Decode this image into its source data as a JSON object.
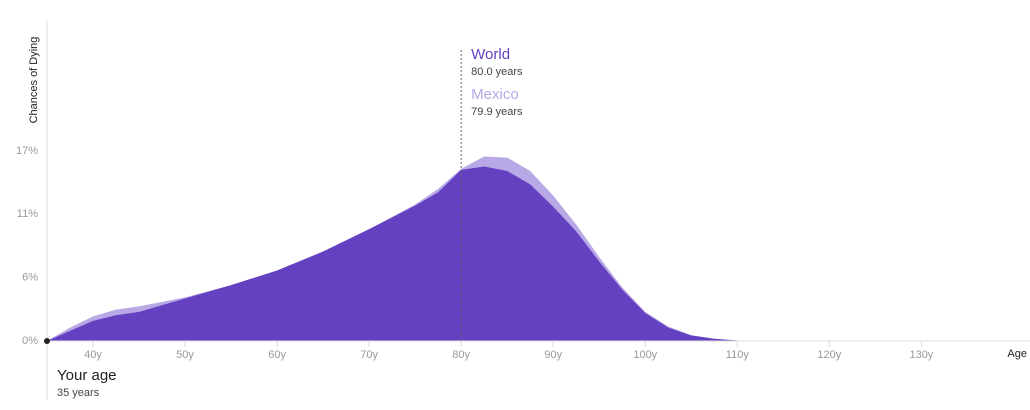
{
  "chart_data": {
    "type": "area",
    "y_label": "Chances of Dying",
    "x_label": "Age",
    "x": [
      35,
      37.5,
      40,
      42.5,
      45,
      50,
      55,
      60,
      65,
      70,
      75,
      77.5,
      80,
      82.5,
      85,
      87.5,
      90,
      92.5,
      95,
      97.5,
      100,
      102.5,
      105,
      107.5,
      110,
      115
    ],
    "series": [
      {
        "name": "Mexico",
        "color": "#b9a8e6",
        "values": [
          0,
          1.2,
          2.2,
          2.8,
          3.1,
          3.9,
          5.0,
          6.3,
          8.0,
          10.0,
          12.2,
          13.6,
          15.4,
          16.5,
          16.4,
          15.2,
          13.0,
          10.4,
          7.5,
          4.8,
          2.6,
          1.3,
          0.5,
          0.2,
          0.05,
          0
        ]
      },
      {
        "name": "World",
        "color": "#6441c0",
        "values": [
          0,
          0.9,
          1.8,
          2.3,
          2.6,
          3.8,
          5.0,
          6.3,
          8.0,
          10.0,
          12.1,
          13.3,
          15.3,
          15.6,
          15.2,
          14.0,
          12.0,
          9.8,
          7.1,
          4.6,
          2.5,
          1.2,
          0.5,
          0.2,
          0.05,
          0
        ]
      }
    ],
    "annotations": [
      {
        "text": "World",
        "subtext": "80.0 years",
        "x": 80
      },
      {
        "text": "Mexico",
        "subtext": "79.9 years",
        "x": 79.9
      },
      {
        "text": "Your age",
        "subtext": "35 years",
        "x": 35
      }
    ],
    "xlim": [
      35,
      141.8
    ],
    "xticks": [
      {
        "value": 40,
        "label": "40y"
      },
      {
        "value": 50,
        "label": "50y"
      },
      {
        "value": 60,
        "label": "60y"
      },
      {
        "value": 70,
        "label": "70y"
      },
      {
        "value": 80,
        "label": "80y"
      },
      {
        "value": 90,
        "label": "90y"
      },
      {
        "value": 100,
        "label": "100y"
      },
      {
        "value": 110,
        "label": "110y"
      },
      {
        "value": 120,
        "label": "120y"
      },
      {
        "value": 130,
        "label": "130y"
      }
    ],
    "ylim": [
      0,
      28.7
    ],
    "yticks": [
      {
        "value": 0,
        "label": "0%"
      },
      {
        "value": 5.667,
        "label": "6%"
      },
      {
        "value": 11.333,
        "label": "11%"
      },
      {
        "value": 17,
        "label": "17%"
      }
    ]
  }
}
